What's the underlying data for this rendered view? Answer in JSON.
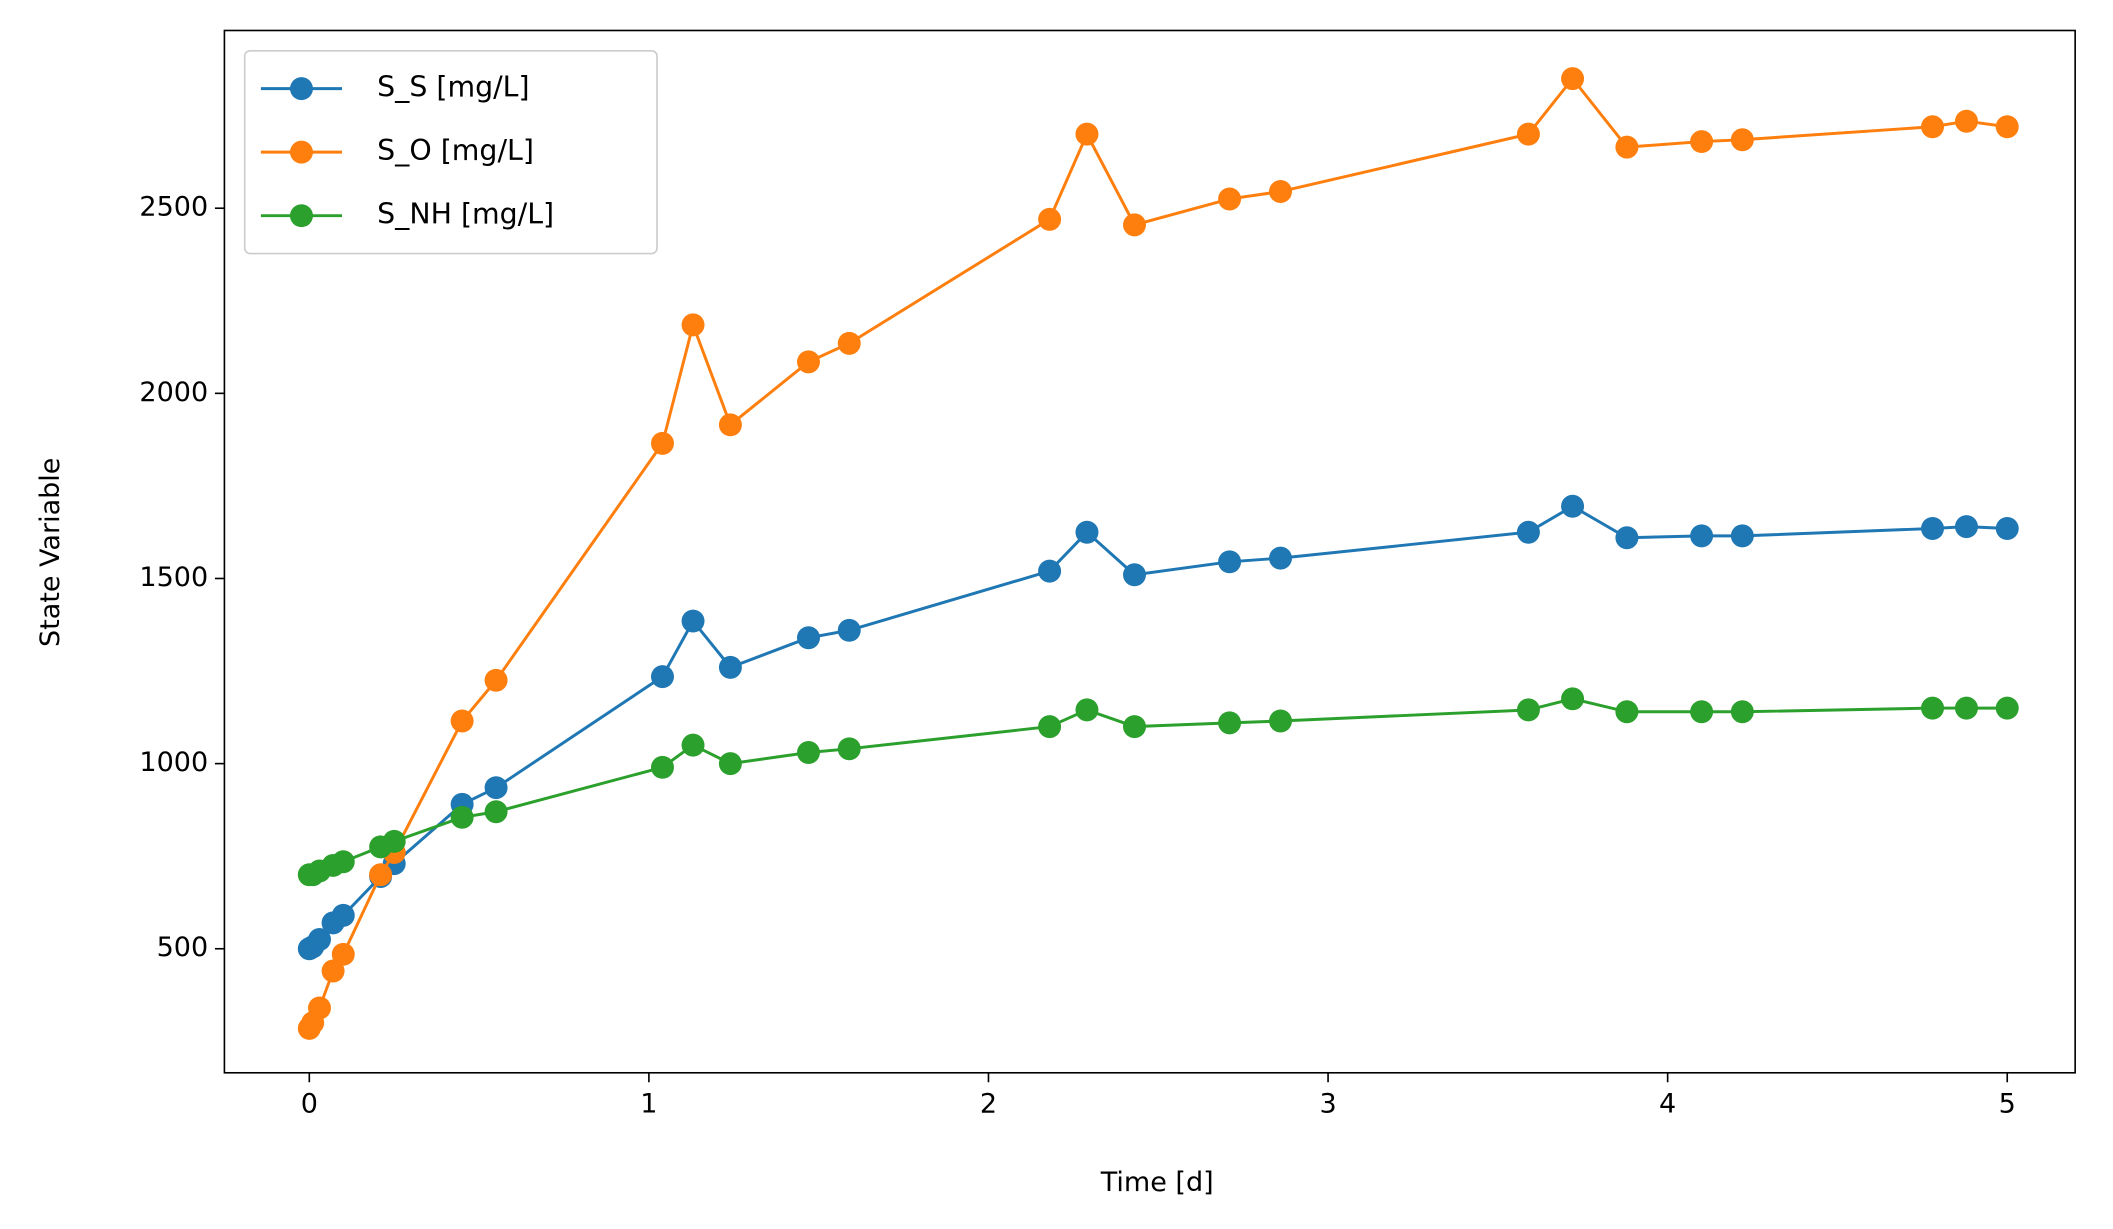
{
  "chart_data": {
    "type": "line",
    "x_label": "Time [d]",
    "y_label": "State Variable",
    "x": [
      0,
      0.01,
      0.03,
      0.07,
      0.1,
      0.21,
      0.25,
      0.45,
      0.55,
      1.04,
      1.13,
      1.24,
      1.47,
      1.59,
      2.18,
      2.29,
      2.43,
      2.71,
      2.86,
      3.59,
      3.72,
      3.88,
      4.1,
      4.22,
      4.78,
      4.88,
      5.0
    ],
    "series": [
      {
        "name": "S_S [mg/L]",
        "color": "#1f77b4",
        "values": [
          500,
          505,
          525,
          570,
          590,
          695,
          730,
          890,
          935,
          1235,
          1385,
          1260,
          1340,
          1360,
          1520,
          1625,
          1510,
          1545,
          1555,
          1625,
          1695,
          1610,
          1615,
          1615,
          1635,
          1640,
          1635
        ]
      },
      {
        "name": "S_O [mg/L]",
        "color": "#ff7f0e",
        "values": [
          285,
          300,
          340,
          440,
          485,
          700,
          760,
          1115,
          1225,
          1865,
          2185,
          1915,
          2085,
          2135,
          2470,
          2700,
          2455,
          2525,
          2545,
          2700,
          2850,
          2665,
          2680,
          2685,
          2720,
          2735,
          2720
        ]
      },
      {
        "name": "S_NH [mg/L]",
        "color": "#2ca02c",
        "values": [
          700,
          700,
          710,
          725,
          735,
          775,
          790,
          855,
          870,
          990,
          1050,
          1000,
          1030,
          1040,
          1100,
          1145,
          1100,
          1110,
          1115,
          1145,
          1175,
          1140,
          1140,
          1140,
          1150,
          1150,
          1150
        ]
      }
    ],
    "xlim": [
      -0.25,
      5.2
    ],
    "xticks": [
      0,
      1,
      2,
      3,
      4,
      5
    ],
    "ylim": [
      165,
      2980
    ],
    "yticks": [
      500,
      1000,
      1500,
      2000,
      2500
    ],
    "legend": "upper left",
    "grid": false
  }
}
